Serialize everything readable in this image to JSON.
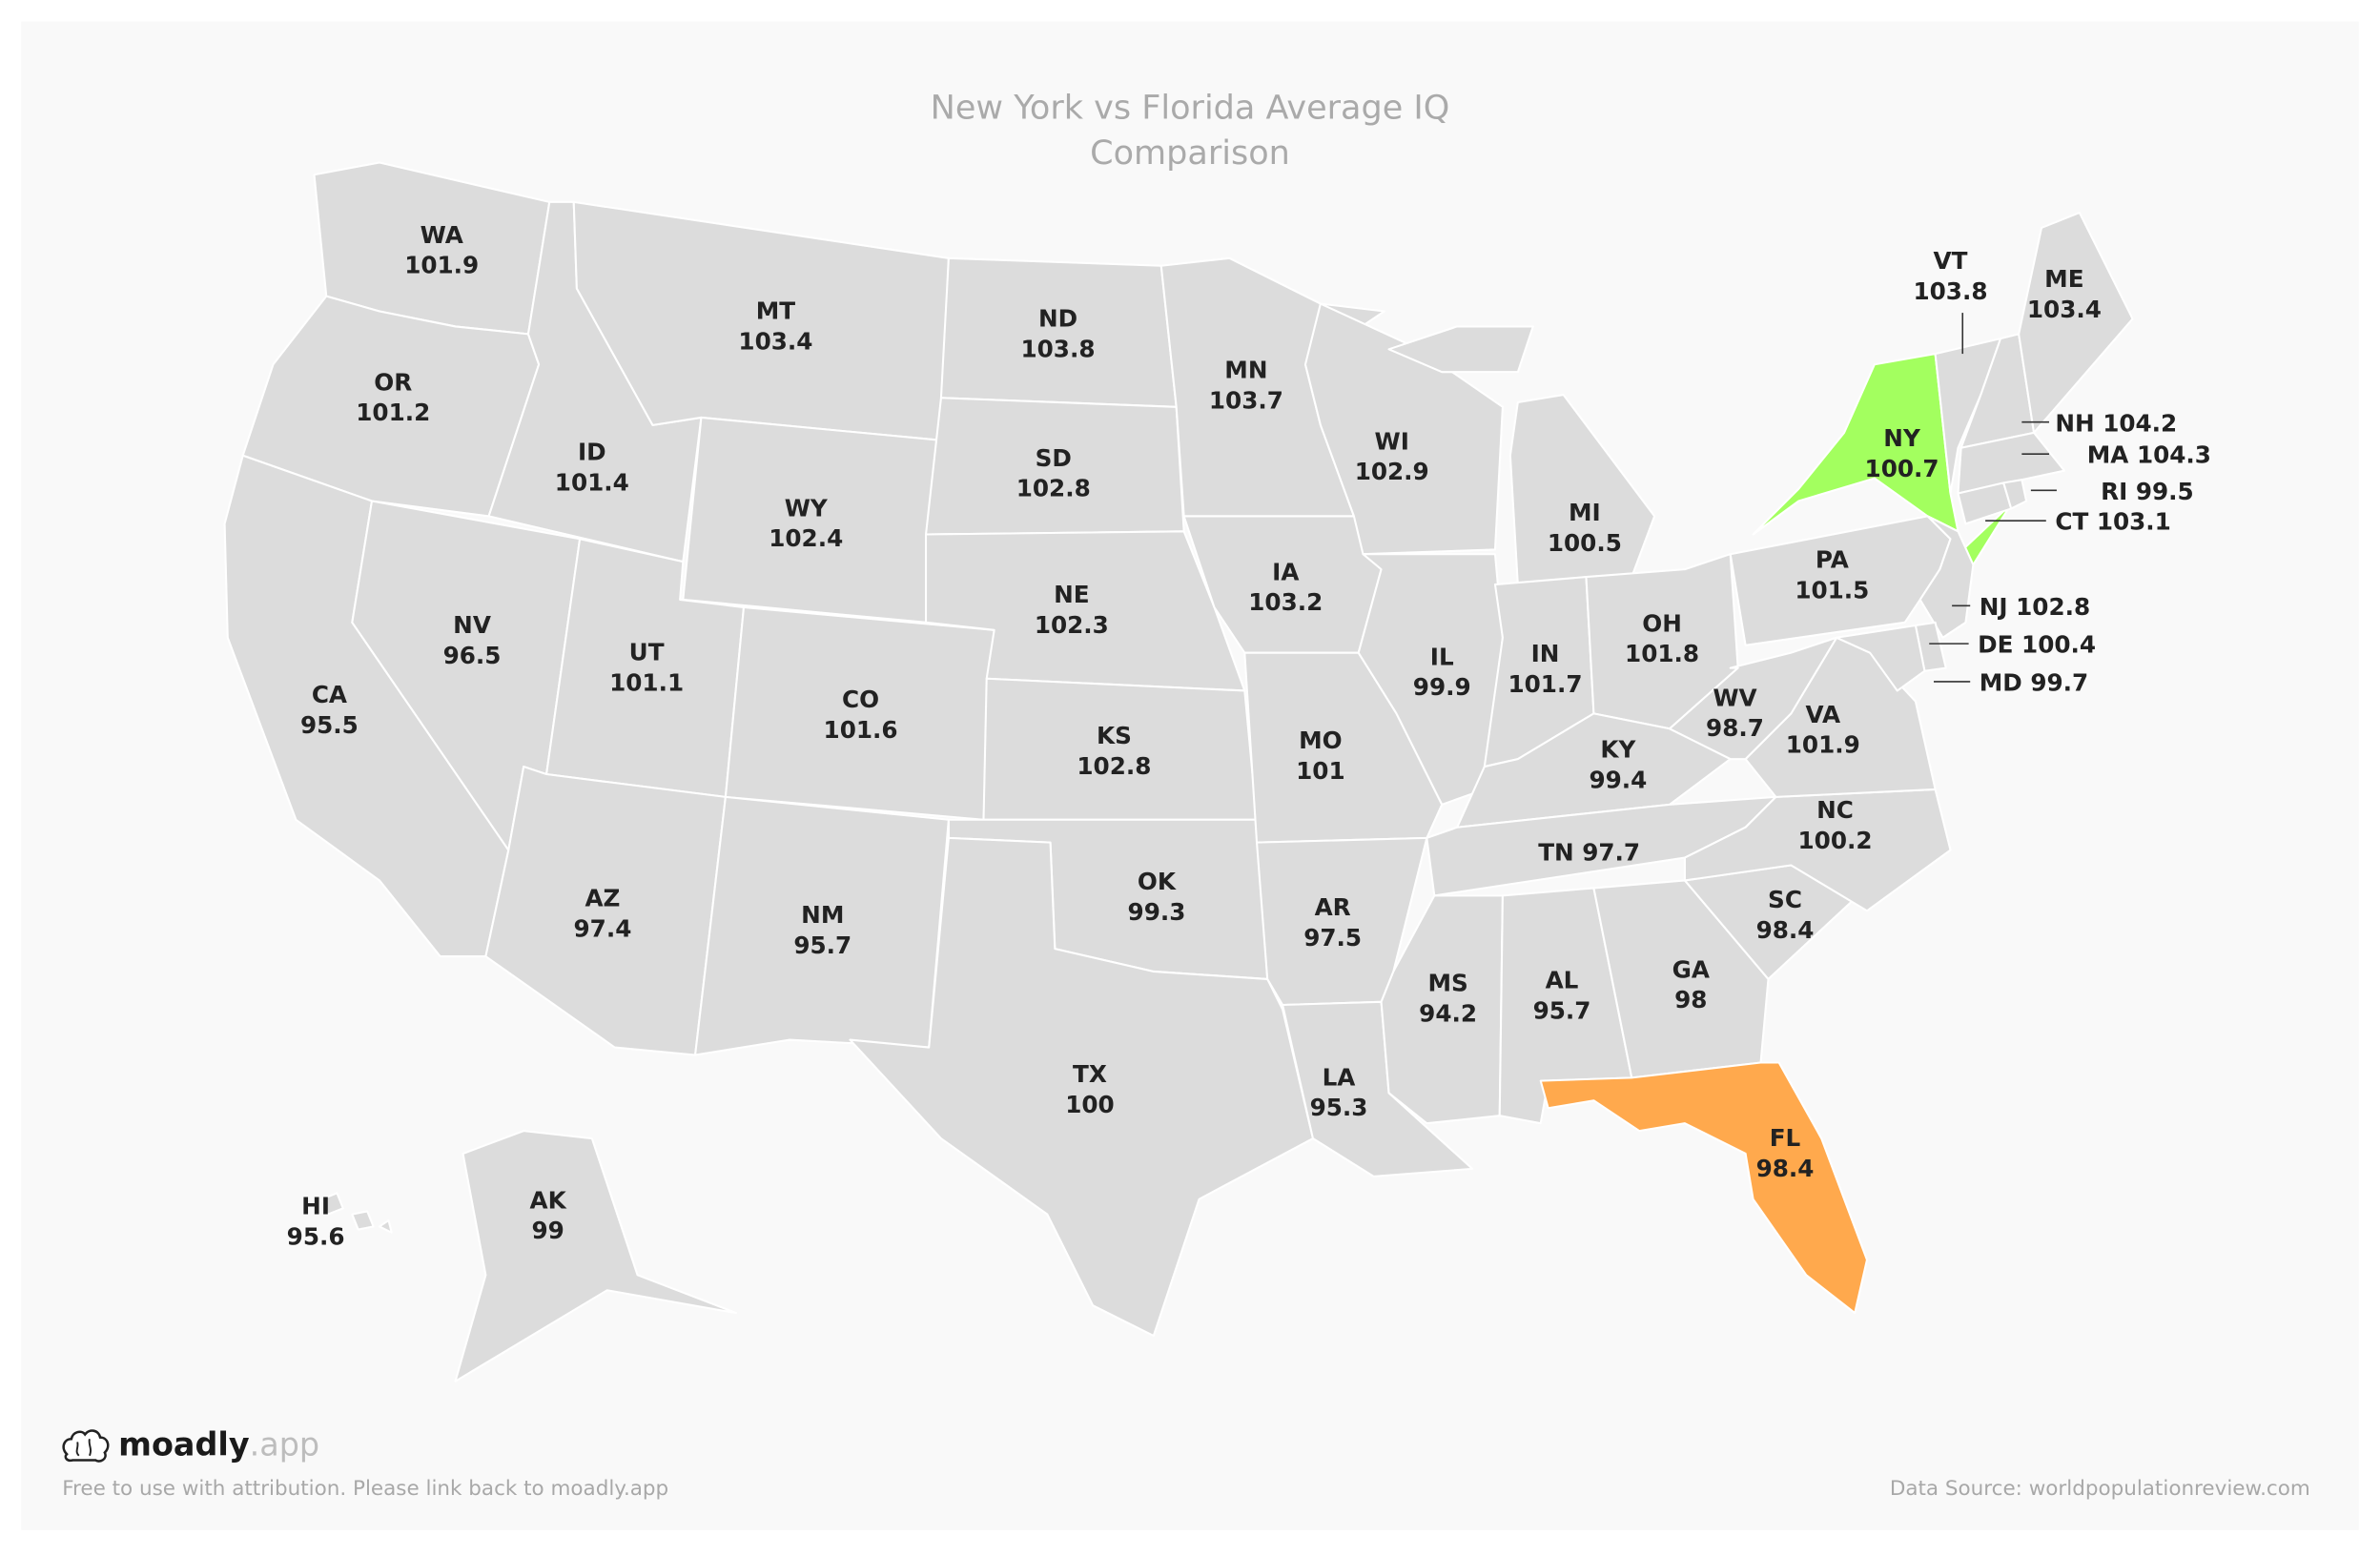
{
  "title_line1": "New York vs Florida Average IQ",
  "title_line2": "Comparison",
  "colors": {
    "default": "#dcdcdc",
    "highlight_ny": "#a3ff5f",
    "highlight_fl": "#ffa94d",
    "border": "#ffffff",
    "card": "#f9f9f9"
  },
  "states": [
    {
      "code": "WA",
      "value": "101.9"
    },
    {
      "code": "OR",
      "value": "101.2"
    },
    {
      "code": "CA",
      "value": "95.5"
    },
    {
      "code": "NV",
      "value": "96.5"
    },
    {
      "code": "ID",
      "value": "101.4"
    },
    {
      "code": "MT",
      "value": "103.4"
    },
    {
      "code": "WY",
      "value": "102.4"
    },
    {
      "code": "UT",
      "value": "101.1"
    },
    {
      "code": "AZ",
      "value": "97.4"
    },
    {
      "code": "CO",
      "value": "101.6"
    },
    {
      "code": "NM",
      "value": "95.7"
    },
    {
      "code": "ND",
      "value": "103.8"
    },
    {
      "code": "SD",
      "value": "102.8"
    },
    {
      "code": "NE",
      "value": "102.3"
    },
    {
      "code": "KS",
      "value": "102.8"
    },
    {
      "code": "OK",
      "value": "99.3"
    },
    {
      "code": "TX",
      "value": "100"
    },
    {
      "code": "MN",
      "value": "103.7"
    },
    {
      "code": "IA",
      "value": "103.2"
    },
    {
      "code": "MO",
      "value": "101"
    },
    {
      "code": "AR",
      "value": "97.5"
    },
    {
      "code": "LA",
      "value": "95.3"
    },
    {
      "code": "WI",
      "value": "102.9"
    },
    {
      "code": "IL",
      "value": "99.9"
    },
    {
      "code": "MI",
      "value": "100.5"
    },
    {
      "code": "IN",
      "value": "101.7"
    },
    {
      "code": "OH",
      "value": "101.8"
    },
    {
      "code": "KY",
      "value": "99.4"
    },
    {
      "code": "TN",
      "value": "97.7"
    },
    {
      "code": "MS",
      "value": "94.2"
    },
    {
      "code": "AL",
      "value": "95.7"
    },
    {
      "code": "GA",
      "value": "98"
    },
    {
      "code": "FL",
      "value": "98.4"
    },
    {
      "code": "SC",
      "value": "98.4"
    },
    {
      "code": "NC",
      "value": "100.2"
    },
    {
      "code": "VA",
      "value": "101.9"
    },
    {
      "code": "WV",
      "value": "98.7"
    },
    {
      "code": "PA",
      "value": "101.5"
    },
    {
      "code": "NY",
      "value": "100.7"
    },
    {
      "code": "VT",
      "value": "103.8"
    },
    {
      "code": "NH",
      "value": "104.2"
    },
    {
      "code": "ME",
      "value": "103.4"
    },
    {
      "code": "MA",
      "value": "104.3"
    },
    {
      "code": "CT",
      "value": "103.1"
    },
    {
      "code": "RI",
      "value": "99.5"
    },
    {
      "code": "NJ",
      "value": "102.8"
    },
    {
      "code": "DE",
      "value": "100.4"
    },
    {
      "code": "MD",
      "value": "99.7"
    },
    {
      "code": "AK",
      "value": "99"
    },
    {
      "code": "HI",
      "value": "95.6"
    }
  ],
  "brand": {
    "name": "moadly",
    "suffix": ".app",
    "icon": "brain-icon"
  },
  "footer_left": "Free to use with attribution. Please link back to moadly.app",
  "footer_right": "Data Source: worldpopulationreview.com"
}
